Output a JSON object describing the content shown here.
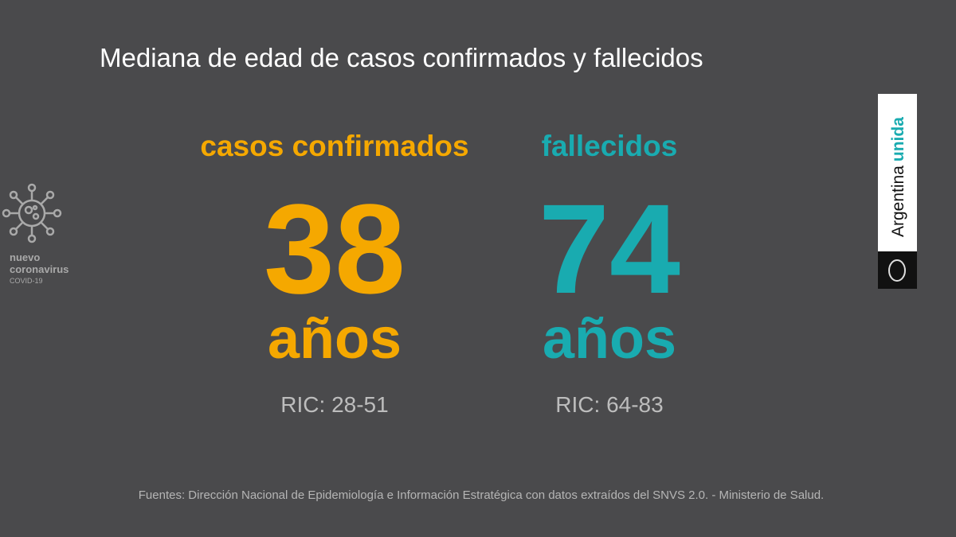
{
  "title": "Mediana de edad de casos confirmados y fallecidos",
  "stats": [
    {
      "label": "casos confirmados",
      "value": 38,
      "unit": "años",
      "range": "RIC: 28-51",
      "color": "#f5a800"
    },
    {
      "label": "fallecidos",
      "value": 74,
      "unit": "años",
      "range": "RIC: 64-83",
      "color": "#19abb0"
    }
  ],
  "logo": {
    "line1": "nuevo",
    "line2": "coronavirus",
    "line3": "COVID-19"
  },
  "badge": {
    "word1": "Argentina",
    "word2": "unida"
  },
  "source": "Fuentes: Dirección Nacional de Epidemiología e Información Estratégica con datos extraídos del SNVS 2.0. - Ministerio de Salud."
}
